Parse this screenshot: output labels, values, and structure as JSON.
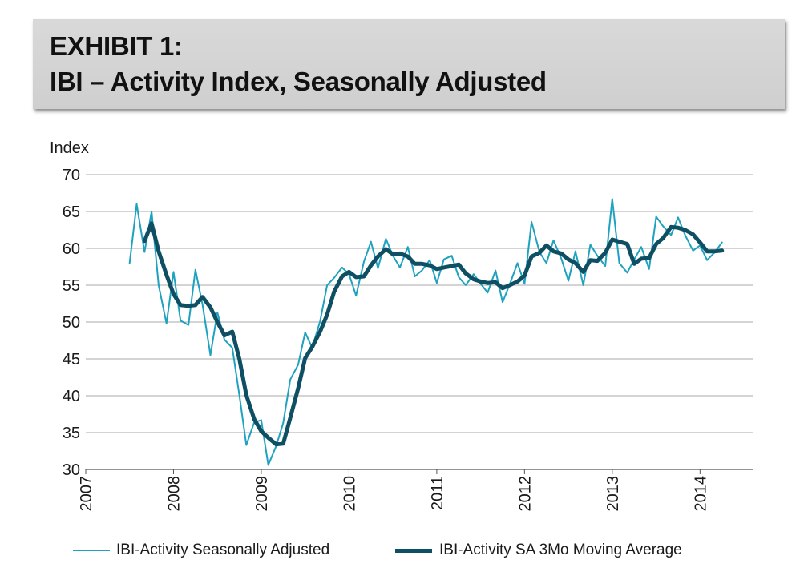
{
  "header": {
    "line1": "EXHIBIT 1:",
    "line2": "IBI – Activity Index, Seasonally Adjusted"
  },
  "chart_data": {
    "type": "line",
    "title": "IBI – Activity Index, Seasonally Adjusted",
    "ylabel": "Index",
    "xlabel": "",
    "ylim": [
      30,
      70
    ],
    "yticks": [
      "30",
      "35",
      "40",
      "45",
      "50",
      "55",
      "60",
      "65",
      "70"
    ],
    "xlim": [
      2007,
      2014.6
    ],
    "xticks": [
      "2007",
      "2008",
      "2009",
      "2010",
      "2011",
      "2012",
      "2013",
      "2014"
    ],
    "grid": "horizontal",
    "legend_position": "bottom",
    "series": [
      {
        "name": "IBI-Activity Seasonally Adjusted",
        "color": "#1fa2bf",
        "x": [
          2007.5,
          2007.58,
          2007.67,
          2007.75,
          2007.83,
          2007.92,
          2008.0,
          2008.08,
          2008.17,
          2008.25,
          2008.33,
          2008.42,
          2008.5,
          2008.58,
          2008.67,
          2008.75,
          2008.83,
          2008.92,
          2009.0,
          2009.08,
          2009.17,
          2009.25,
          2009.33,
          2009.42,
          2009.5,
          2009.58,
          2009.67,
          2009.75,
          2009.83,
          2009.92,
          2010.0,
          2010.08,
          2010.17,
          2010.25,
          2010.33,
          2010.42,
          2010.5,
          2010.58,
          2010.67,
          2010.75,
          2010.83,
          2010.92,
          2011.0,
          2011.08,
          2011.17,
          2011.25,
          2011.33,
          2011.42,
          2011.5,
          2011.58,
          2011.67,
          2011.75,
          2011.83,
          2011.92,
          2012.0,
          2012.08,
          2012.17,
          2012.25,
          2012.33,
          2012.42,
          2012.5,
          2012.58,
          2012.67,
          2012.75,
          2012.83,
          2012.92,
          2013.0,
          2013.08,
          2013.17,
          2013.25,
          2013.33,
          2013.42,
          2013.5,
          2013.58,
          2013.67,
          2013.75,
          2013.83,
          2013.92,
          2014.0,
          2014.08,
          2014.17,
          2014.25
        ],
        "values": [
          58.0,
          66.0,
          59.5,
          65.0,
          55.0,
          49.8,
          56.8,
          50.2,
          49.6,
          57.1,
          52.4,
          45.5,
          51.3,
          47.6,
          46.5,
          40.1,
          33.3,
          36.4,
          36.7,
          30.6,
          33.2,
          36.3,
          42.2,
          44.2,
          48.6,
          46.5,
          50.1,
          55.0,
          56.0,
          57.4,
          56.5,
          53.6,
          58.2,
          60.9,
          57.3,
          61.3,
          59.0,
          57.4,
          60.2,
          56.2,
          57.0,
          58.4,
          55.3,
          58.5,
          59.0,
          56.1,
          55.0,
          56.5,
          55.2,
          54.0,
          57.0,
          52.7,
          55.1,
          58.0,
          55.2,
          63.6,
          59.5,
          58.0,
          61.1,
          58.6,
          55.6,
          59.6,
          55.0,
          60.5,
          59.0,
          57.6,
          66.7,
          58.0,
          56.7,
          58.5,
          60.2,
          57.2,
          64.3,
          63.0,
          61.8,
          64.2,
          61.8,
          59.7,
          60.4,
          58.4,
          59.5,
          60.8
        ]
      },
      {
        "name": "IBI-Activity SA 3Mo Moving Average",
        "color": "#0e4f63",
        "x": [
          2007.67,
          2007.75,
          2007.83,
          2007.92,
          2008.0,
          2008.08,
          2008.17,
          2008.25,
          2008.33,
          2008.42,
          2008.5,
          2008.58,
          2008.67,
          2008.75,
          2008.83,
          2008.92,
          2009.0,
          2009.08,
          2009.17,
          2009.25,
          2009.33,
          2009.42,
          2009.5,
          2009.58,
          2009.67,
          2009.75,
          2009.83,
          2009.92,
          2010.0,
          2010.08,
          2010.17,
          2010.25,
          2010.33,
          2010.42,
          2010.5,
          2010.58,
          2010.67,
          2010.75,
          2010.83,
          2010.92,
          2011.0,
          2011.08,
          2011.17,
          2011.25,
          2011.33,
          2011.42,
          2011.5,
          2011.58,
          2011.67,
          2011.75,
          2011.83,
          2011.92,
          2012.0,
          2012.08,
          2012.17,
          2012.25,
          2012.33,
          2012.42,
          2012.5,
          2012.58,
          2012.67,
          2012.75,
          2012.83,
          2012.92,
          2013.0,
          2013.08,
          2013.17,
          2013.25,
          2013.33,
          2013.42,
          2013.5,
          2013.58,
          2013.67,
          2013.75,
          2013.83,
          2013.92,
          2014.0,
          2014.08,
          2014.17,
          2014.25
        ],
        "values": [
          61.0,
          63.4,
          59.6,
          56.4,
          53.8,
          52.3,
          52.2,
          52.3,
          53.4,
          52.0,
          50.0,
          48.2,
          48.7,
          45.0,
          40.1,
          36.8,
          35.2,
          34.3,
          33.4,
          33.5,
          37.0,
          41.0,
          45.1,
          46.6,
          48.7,
          51.0,
          54.1,
          56.2,
          56.8,
          56.1,
          56.2,
          57.7,
          58.9,
          59.9,
          59.2,
          59.3,
          58.9,
          57.9,
          57.9,
          57.7,
          57.2,
          57.4,
          57.6,
          57.8,
          56.6,
          55.8,
          55.5,
          55.3,
          55.4,
          54.6,
          55.0,
          55.5,
          56.3,
          58.9,
          59.4,
          60.4,
          59.6,
          59.3,
          58.5,
          58.0,
          56.8,
          58.4,
          58.3,
          59.4,
          61.2,
          60.9,
          60.6,
          57.9,
          58.6,
          58.7,
          60.6,
          61.4,
          62.9,
          62.8,
          62.5,
          61.9,
          60.8,
          59.6,
          59.6,
          59.7
        ]
      }
    ]
  },
  "legend": {
    "series1": "IBI-Activity Seasonally Adjusted",
    "series2": "IBI-Activity SA 3Mo Moving Average"
  }
}
